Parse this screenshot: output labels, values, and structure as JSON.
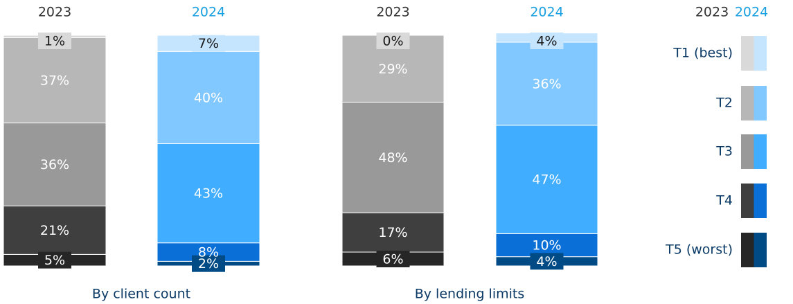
{
  "chart_data": [
    {
      "type": "bar",
      "stacked": true,
      "title": "By client count",
      "categories": [
        "2023",
        "2024"
      ],
      "category_colors": [
        "#333333",
        "#1a9fe0"
      ],
      "ylim": [
        0,
        100
      ],
      "series": [
        {
          "name": "T1 (best)",
          "colors": [
            "#d9d9d9",
            "#c5e5ff"
          ],
          "label_color": "#1a1a1a",
          "values": [
            1,
            7
          ],
          "value_labels": [
            "1%",
            "7%"
          ]
        },
        {
          "name": "T2",
          "colors": [
            "#b7b7b7",
            "#80c8ff"
          ],
          "label_color": "#ffffff",
          "values": [
            37,
            40
          ],
          "value_labels": [
            "37%",
            "40%"
          ]
        },
        {
          "name": "T3",
          "colors": [
            "#999999",
            "#40adff"
          ],
          "label_color": "#ffffff",
          "values": [
            36,
            43
          ],
          "value_labels": [
            "36%",
            "43%"
          ]
        },
        {
          "name": "T4",
          "colors": [
            "#3f3f3f",
            "#0a6fd6"
          ],
          "label_color": "#ffffff",
          "values": [
            21,
            8
          ],
          "value_labels": [
            "21%",
            "8%"
          ]
        },
        {
          "name": "T5 (worst)",
          "colors": [
            "#262626",
            "#004a85"
          ],
          "label_color": "#ffffff",
          "values": [
            5,
            2
          ],
          "value_labels": [
            "5%",
            "2%"
          ]
        }
      ]
    },
    {
      "type": "bar",
      "stacked": true,
      "title": "By lending limits",
      "categories": [
        "2023",
        "2024"
      ],
      "category_colors": [
        "#333333",
        "#1a9fe0"
      ],
      "ylim": [
        0,
        100
      ],
      "series": [
        {
          "name": "T1 (best)",
          "colors": [
            "#d9d9d9",
            "#c5e5ff"
          ],
          "label_color": "#1a1a1a",
          "values": [
            0,
            4
          ],
          "value_labels": [
            "0%",
            "4%"
          ]
        },
        {
          "name": "T2",
          "colors": [
            "#b7b7b7",
            "#80c8ff"
          ],
          "label_color": "#ffffff",
          "values": [
            29,
            36
          ],
          "value_labels": [
            "29%",
            "36%"
          ]
        },
        {
          "name": "T3",
          "colors": [
            "#999999",
            "#40adff"
          ],
          "label_color": "#ffffff",
          "values": [
            48,
            47
          ],
          "value_labels": [
            "48%",
            "47%"
          ]
        },
        {
          "name": "T4",
          "colors": [
            "#3f3f3f",
            "#0a6fd6"
          ],
          "label_color": "#ffffff",
          "values": [
            17,
            10
          ],
          "value_labels": [
            "17%",
            "10%"
          ]
        },
        {
          "name": "T5 (worst)",
          "colors": [
            "#262626",
            "#004a85"
          ],
          "label_color": "#ffffff",
          "values": [
            6,
            4
          ],
          "value_labels": [
            "6%",
            "4%"
          ]
        }
      ]
    }
  ]
}
